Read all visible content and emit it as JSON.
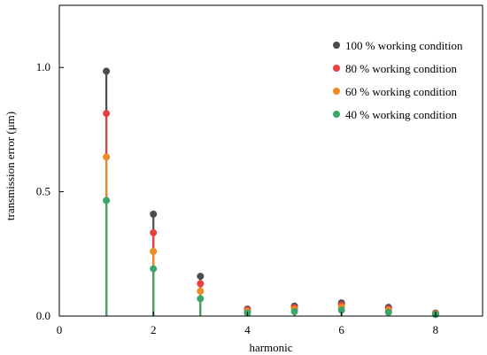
{
  "chart_data": {
    "type": "stem",
    "xlabel": "harmonic",
    "ylabel": "transmission error (μm)",
    "xlim": [
      0,
      9
    ],
    "ylim": [
      0,
      1.25
    ],
    "xticks": [
      0,
      2,
      4,
      6,
      8
    ],
    "xtick_labels": [
      "0",
      "2",
      "4",
      "6",
      "8"
    ],
    "yticks": [
      0.0,
      0.5,
      1.0
    ],
    "ytick_labels": [
      "0.0",
      "0.5",
      "1.0"
    ],
    "legend_position": "top-right",
    "grid": false,
    "x": [
      1,
      2,
      3,
      4,
      5,
      6,
      7,
      8
    ],
    "series": [
      {
        "name": "100 % working condition",
        "color": "#4d4d4d",
        "values": [
          0.985,
          0.41,
          0.16,
          0.028,
          0.04,
          0.053,
          0.035,
          0.012
        ]
      },
      {
        "name": "80 % working condition",
        "color": "#e8403f",
        "values": [
          0.815,
          0.335,
          0.13,
          0.024,
          0.034,
          0.045,
          0.029,
          0.01
        ]
      },
      {
        "name": "60 % working condition",
        "color": "#f08a24",
        "values": [
          0.64,
          0.26,
          0.1,
          0.019,
          0.027,
          0.036,
          0.023,
          0.008
        ]
      },
      {
        "name": "40 % working condition",
        "color": "#3aa66a",
        "values": [
          0.465,
          0.19,
          0.07,
          0.012,
          0.018,
          0.024,
          0.015,
          0.006
        ]
      }
    ]
  }
}
